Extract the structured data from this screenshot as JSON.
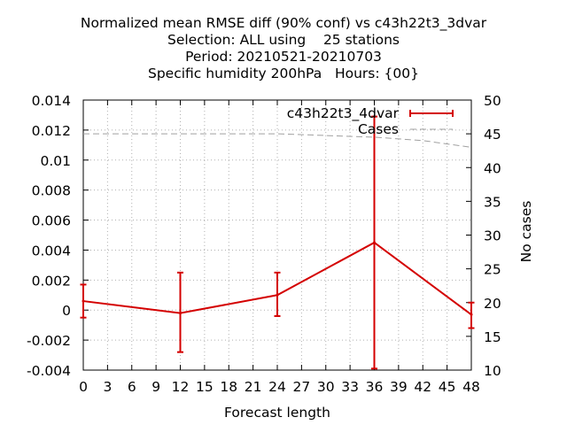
{
  "chart_data": {
    "type": "line",
    "title_lines": [
      "Normalized mean RMSE diff (90% conf) vs c43h22t3_3dvar",
      "Selection: ALL using    25 stations",
      "Period: 20210521-20210703",
      "Specific humidity 200hPa   Hours: {00}"
    ],
    "xlabel": "Forecast length",
    "ylabel": "",
    "y2label": "No cases",
    "xlim": [
      0,
      48
    ],
    "ylim": [
      -0.004,
      0.014
    ],
    "y2lim": [
      10,
      50
    ],
    "x_ticks": [
      "0",
      "3",
      "6",
      "9",
      "12",
      "15",
      "18",
      "21",
      "24",
      "27",
      "30",
      "33",
      "36",
      "39",
      "42",
      "45",
      "48"
    ],
    "y_ticks": [
      "-0.004",
      "-0.002",
      "0",
      "0.002",
      "0.004",
      "0.006",
      "0.008",
      "0.01",
      "0.012",
      "0.014"
    ],
    "y2_ticks": [
      "10",
      "15",
      "20",
      "25",
      "30",
      "35",
      "40",
      "45",
      "50"
    ],
    "grid": true,
    "legend_position": "top-right",
    "series": [
      {
        "name": "c43h22t3_4dvar",
        "color": "#d40000",
        "x": [
          0,
          12,
          24,
          36,
          48
        ],
        "y": [
          0.0006,
          -0.0002,
          0.001,
          0.0045,
          -0.0003
        ],
        "err_low": [
          -0.0005,
          -0.0028,
          -0.0004,
          -0.0039,
          -0.0012
        ],
        "err_high": [
          0.0017,
          0.0025,
          0.0025,
          0.0129,
          0.0005
        ]
      },
      {
        "name": "Cases",
        "color": "#a0a0a0",
        "axis": "right",
        "x": [
          0,
          12,
          24,
          36,
          42,
          48
        ],
        "y": [
          45,
          45,
          45,
          44.5,
          44,
          43
        ]
      }
    ]
  }
}
